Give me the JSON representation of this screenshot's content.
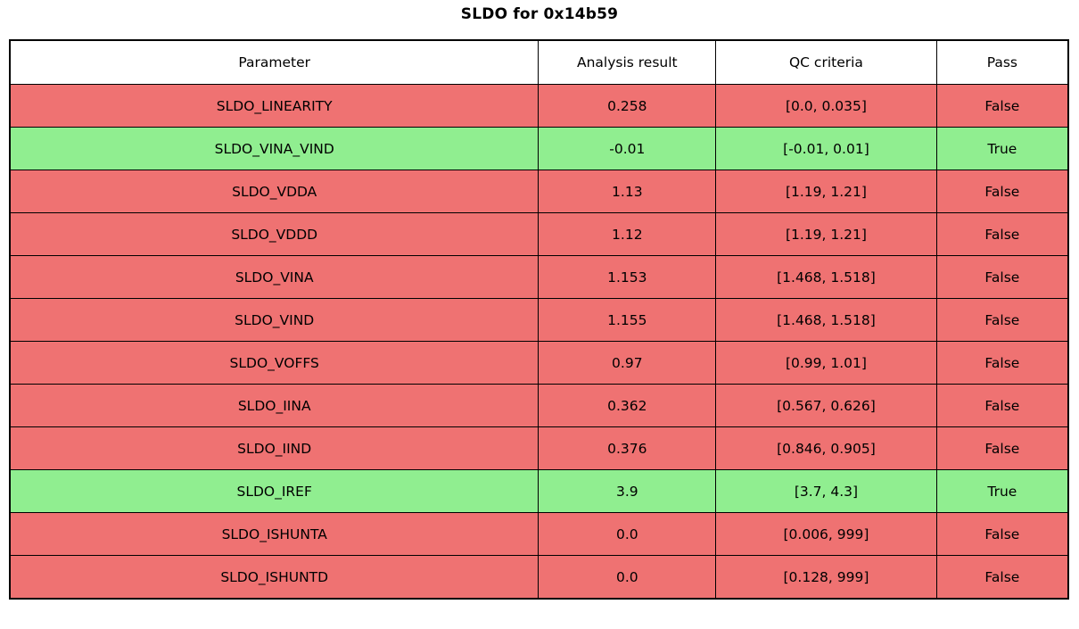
{
  "chart_data": {
    "type": "table",
    "title": "SLDO for 0x14b59",
    "columns": [
      "Parameter",
      "Analysis result",
      "QC criteria",
      "Pass"
    ],
    "rows": [
      {
        "parameter": "SLDO_LINEARITY",
        "analysis_result": "0.258",
        "qc_criteria": "[0.0, 0.035]",
        "pass": "False"
      },
      {
        "parameter": "SLDO_VINA_VIND",
        "analysis_result": "-0.01",
        "qc_criteria": "[-0.01, 0.01]",
        "pass": "True"
      },
      {
        "parameter": "SLDO_VDDA",
        "analysis_result": "1.13",
        "qc_criteria": "[1.19, 1.21]",
        "pass": "False"
      },
      {
        "parameter": "SLDO_VDDD",
        "analysis_result": "1.12",
        "qc_criteria": "[1.19, 1.21]",
        "pass": "False"
      },
      {
        "parameter": "SLDO_VINA",
        "analysis_result": "1.153",
        "qc_criteria": "[1.468, 1.518]",
        "pass": "False"
      },
      {
        "parameter": "SLDO_VIND",
        "analysis_result": "1.155",
        "qc_criteria": "[1.468, 1.518]",
        "pass": "False"
      },
      {
        "parameter": "SLDO_VOFFS",
        "analysis_result": "0.97",
        "qc_criteria": "[0.99, 1.01]",
        "pass": "False"
      },
      {
        "parameter": "SLDO_IINA",
        "analysis_result": "0.362",
        "qc_criteria": "[0.567, 0.626]",
        "pass": "False"
      },
      {
        "parameter": "SLDO_IIND",
        "analysis_result": "0.376",
        "qc_criteria": "[0.846, 0.905]",
        "pass": "False"
      },
      {
        "parameter": "SLDO_IREF",
        "analysis_result": "3.9",
        "qc_criteria": "[3.7, 4.3]",
        "pass": "True"
      },
      {
        "parameter": "SLDO_ISHUNTA",
        "analysis_result": "0.0",
        "qc_criteria": "[0.006, 999]",
        "pass": "False"
      },
      {
        "parameter": "SLDO_ISHUNTD",
        "analysis_result": "0.0",
        "qc_criteria": "[0.128, 999]",
        "pass": "False"
      }
    ],
    "colors": {
      "fail_row": "#ef7272",
      "pass_row": "#90ee90",
      "header_bg": "#ffffff",
      "border": "#000000",
      "text": "#000000"
    },
    "legend_position": "none",
    "grid": "on"
  }
}
